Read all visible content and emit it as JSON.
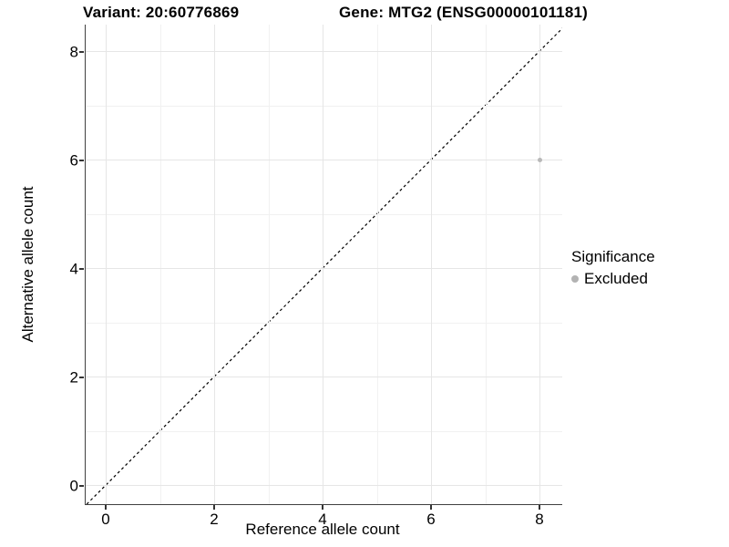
{
  "chart_data": {
    "type": "scatter",
    "title_left": "Variant: 20:60776869",
    "title_right": "Gene: MTG2 (ENSG00000101181)",
    "xlabel": "Reference allele count",
    "ylabel": "Alternative allele count",
    "xlim": [
      -0.37,
      8.42
    ],
    "ylim": [
      -0.35,
      8.49
    ],
    "x_ticks": [
      0,
      2,
      4,
      6,
      8
    ],
    "y_ticks": [
      0,
      2,
      4,
      6,
      8
    ],
    "x_minor_gridlines": [
      1,
      3,
      5,
      7
    ],
    "y_minor_gridlines": [
      1,
      3,
      5,
      7
    ],
    "grid": "on",
    "identity_line": {
      "style": "dashed",
      "color": "#000000",
      "from": -0.35,
      "to": 8.45
    },
    "series": [
      {
        "name": "Excluded",
        "color": "#b8b8b8",
        "points": [
          {
            "x": 8,
            "y": 6
          }
        ]
      }
    ],
    "legend": {
      "position": "right",
      "title": "Significance",
      "items": [
        {
          "label": "Excluded",
          "color": "#b3b3b3"
        }
      ]
    }
  },
  "colors": {
    "axis_line": "#404040",
    "major_grid": "#e6e6e6",
    "minor_grid": "#f1f1f1",
    "background": "#ffffff"
  }
}
